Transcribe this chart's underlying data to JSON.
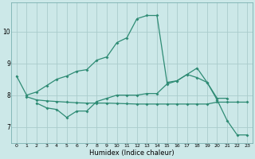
{
  "xlabel": "Humidex (Indice chaleur)",
  "color": "#2e8b74",
  "bg_color": "#cce8e8",
  "grid_color": "#aacccc",
  "ylim": [
    6.5,
    10.9
  ],
  "xlim": [
    -0.5,
    23.5
  ],
  "line1_x": [
    0,
    1,
    2,
    3,
    4,
    5,
    6,
    7,
    8,
    9,
    10,
    11,
    12,
    13,
    14,
    15,
    16,
    17,
    18,
    19,
    20,
    21
  ],
  "line1_y": [
    8.6,
    8.0,
    8.1,
    8.3,
    8.5,
    8.6,
    8.75,
    8.8,
    9.1,
    9.2,
    9.65,
    9.8,
    10.4,
    10.5,
    10.5,
    8.4,
    8.45,
    8.65,
    8.85,
    8.4,
    7.9,
    7.9
  ],
  "line2_x": [
    2,
    3,
    4,
    5,
    6,
    7,
    8,
    9,
    10,
    11,
    12,
    13,
    14,
    15,
    16,
    17,
    18,
    19,
    20,
    21,
    22,
    23
  ],
  "line2_y": [
    7.75,
    7.6,
    7.55,
    7.3,
    7.5,
    7.5,
    7.8,
    7.9,
    8.0,
    8.0,
    8.0,
    8.05,
    8.05,
    8.35,
    8.45,
    8.65,
    8.55,
    8.4,
    7.85,
    7.2,
    6.75,
    6.75
  ],
  "line3_x": [
    1,
    2,
    3,
    4,
    5,
    6,
    7,
    8,
    9,
    10,
    11,
    12,
    13,
    14,
    15,
    16,
    17,
    18,
    19,
    20,
    21,
    22,
    23
  ],
  "line3_y": [
    7.95,
    7.85,
    7.82,
    7.8,
    7.78,
    7.76,
    7.75,
    7.75,
    7.75,
    7.74,
    7.73,
    7.72,
    7.72,
    7.72,
    7.72,
    7.72,
    7.72,
    7.72,
    7.72,
    7.78,
    7.78,
    7.78,
    7.78
  ]
}
